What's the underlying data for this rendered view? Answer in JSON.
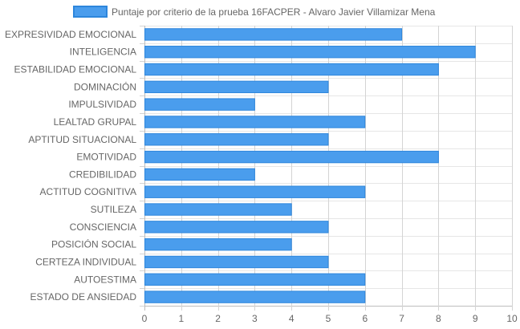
{
  "chart_data": {
    "type": "bar",
    "orientation": "horizontal",
    "categories": [
      "EXPRESIVIDAD EMOCIONAL",
      "INTELIGENCIA",
      "ESTABILIDAD EMOCIONAL",
      "DOMINACIÓN",
      "IMPULSIVIDAD",
      "LEALTAD GRUPAL",
      "APTITUD SITUACIONAL",
      "EMOTIVIDAD",
      "CREDIBILIDAD",
      "ACTITUD COGNITIVA",
      "SUTILEZA",
      "CONSCIENCIA",
      "POSICIÓN SOCIAL",
      "CERTEZA INDIVIDUAL",
      "AUTOESTIMA",
      "ESTADO DE ANSIEDAD"
    ],
    "series": [
      {
        "name": "Puntaje por criterio de la prueba 16FACPER - Alvaro Javier Villamizar Mena",
        "values": [
          7,
          9,
          8,
          5,
          3,
          6,
          5,
          8,
          3,
          6,
          4,
          5,
          4,
          5,
          6,
          6
        ],
        "color": "#4a9ded",
        "border_color": "#2d86dc"
      }
    ],
    "xlim": [
      0,
      10
    ],
    "x_ticks": [
      0,
      1,
      2,
      3,
      4,
      5,
      6,
      7,
      8,
      9,
      10
    ],
    "grid": true,
    "legend_position": "top"
  }
}
